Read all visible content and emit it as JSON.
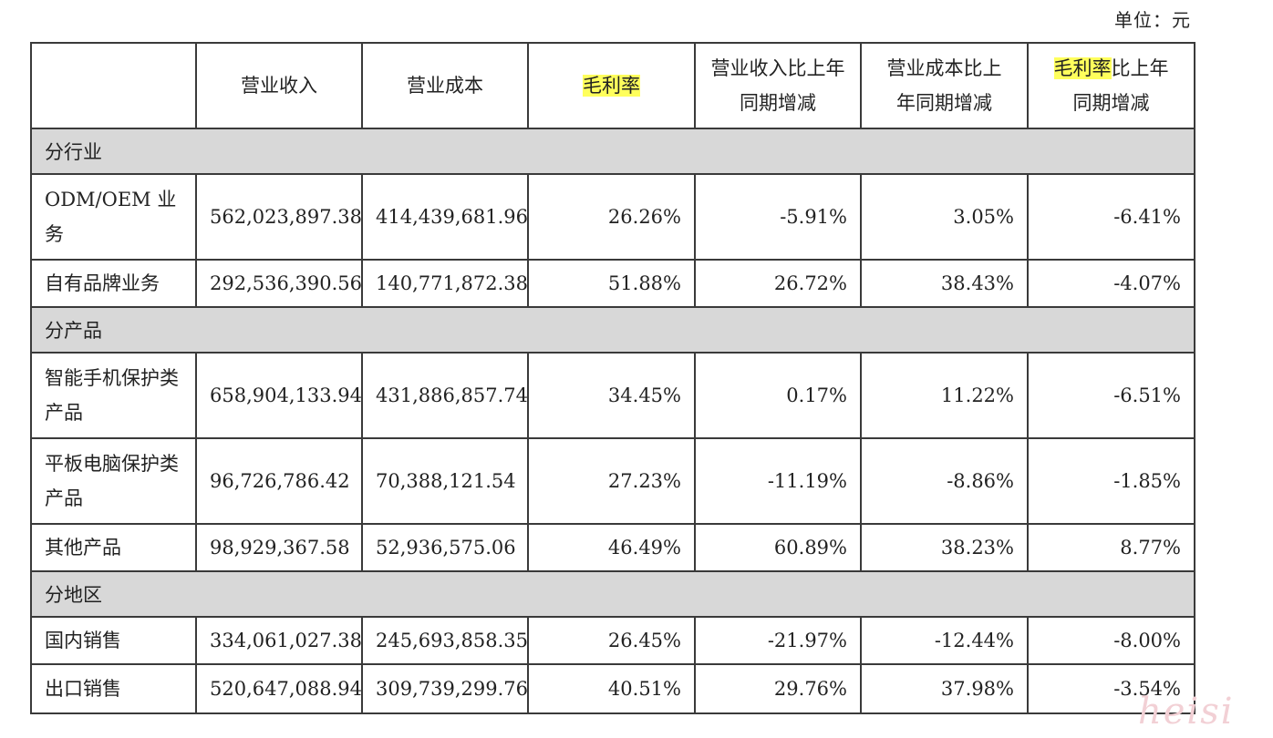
{
  "unit_label": "单位：元",
  "header": {
    "col1": "营业收入",
    "col2": "营业成本",
    "col3": "毛利率",
    "col4": "营业收入比上年同期增减",
    "col5_line1": "营业成本比上",
    "col5_line2": "年同期增减",
    "col6_hl": "毛利率",
    "col6_rest": "比上年",
    "col6_line2": "同期增减"
  },
  "sections": {
    "industry": "分行业",
    "product": "分产品",
    "region": "分地区"
  },
  "rows": {
    "odm": [
      "ODM/OEM 业务",
      "562,023,897.38",
      "414,439,681.96",
      "26.26%",
      "-5.91%",
      "3.05%",
      "-6.41%"
    ],
    "brand": [
      "自有品牌业务",
      "292,536,390.56",
      "140,771,872.38",
      "51.88%",
      "26.72%",
      "38.43%",
      "-4.07%"
    ],
    "phone": [
      "智能手机保护类产品",
      "658,904,133.94",
      "431,886,857.74",
      "34.45%",
      "0.17%",
      "11.22%",
      "-6.51%"
    ],
    "tablet": [
      "平板电脑保护类产品",
      "96,726,786.42",
      "70,388,121.54",
      "27.23%",
      "-11.19%",
      "-8.86%",
      "-1.85%"
    ],
    "other": [
      "其他产品",
      "98,929,367.58",
      "52,936,575.06",
      "46.49%",
      "60.89%",
      "38.23%",
      "8.77%"
    ],
    "domestic": [
      "国内销售",
      "334,061,027.38",
      "245,693,858.35",
      "26.45%",
      "-21.97%",
      "-12.44%",
      "-8.00%"
    ],
    "export": [
      "出口销售",
      "520,647,088.94",
      "309,739,299.76",
      "40.51%",
      "29.76%",
      "37.98%",
      "-3.54%"
    ]
  },
  "watermark": "heisi",
  "colors": {
    "highlight": "#ffff5c",
    "section_bg": "#d8d8d8",
    "border": "#3a3a3a"
  }
}
